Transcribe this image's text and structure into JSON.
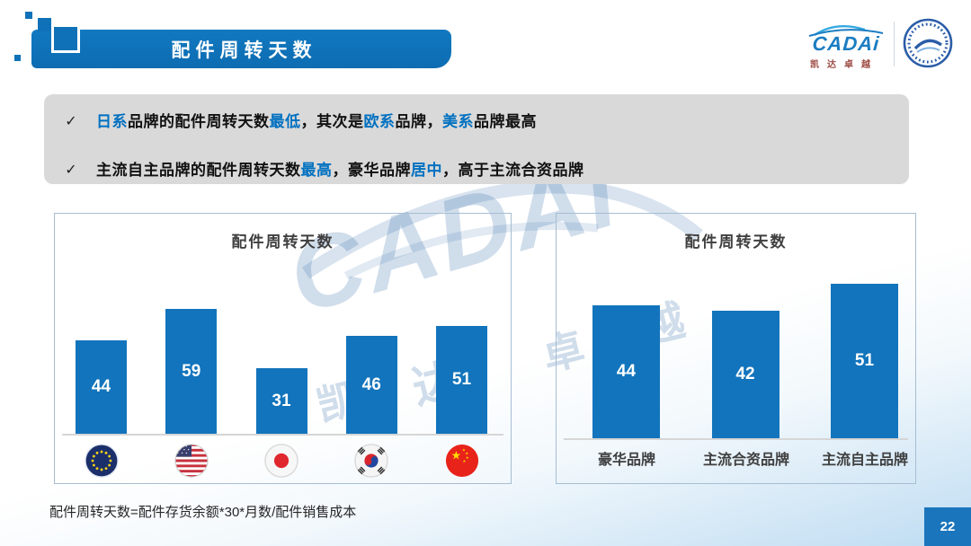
{
  "slide": {
    "banner_title": "配件周转天数",
    "footnote": "配件周转天数=配件存货余额*30*月数/配件销售成本",
    "page_number": "22"
  },
  "logo": {
    "brand": "CADAi",
    "subtitle": "凯达卓越"
  },
  "bullets": [
    {
      "check": "✓",
      "segments": [
        {
          "text": "日系",
          "color": "blue"
        },
        {
          "text": "品牌的配件周转天数",
          "color": "dark"
        },
        {
          "text": "最低",
          "color": "blue"
        },
        {
          "text": "，其次是",
          "color": "dark"
        },
        {
          "text": "欧系",
          "color": "blue"
        },
        {
          "text": "品牌，",
          "color": "dark"
        },
        {
          "text": "美系",
          "color": "blue"
        },
        {
          "text": "品牌最高",
          "color": "dark"
        }
      ]
    },
    {
      "check": "✓",
      "segments": [
        {
          "text": "主流自主品牌的配件周转天数",
          "color": "dark"
        },
        {
          "text": "最高",
          "color": "blue"
        },
        {
          "text": "，豪华品牌",
          "color": "dark"
        },
        {
          "text": "居中",
          "color": "blue"
        },
        {
          "text": "，高于主流合资品牌",
          "color": "dark"
        }
      ]
    }
  ],
  "watermark": {
    "brand": "CADAi",
    "chars": [
      "凯",
      "达",
      "卓",
      "越"
    ]
  },
  "chart_data": [
    {
      "type": "bar",
      "title": "配件周转天数",
      "categories": [
        "EU",
        "US",
        "Japan",
        "Korea",
        "China"
      ],
      "category_icons": [
        "eu-flag-icon",
        "usa-flag-icon",
        "japan-flag-icon",
        "korea-flag-icon",
        "china-flag-icon"
      ],
      "values": [
        44,
        59,
        31,
        46,
        51
      ],
      "bar_color": "#1274bc",
      "value_label_color": "#ffffff",
      "value_labels": "inside-center",
      "grid": false,
      "ylim": [
        0,
        65
      ]
    },
    {
      "type": "bar",
      "title": "配件周转天数",
      "categories": [
        "豪华品牌",
        "主流合资品牌",
        "主流自主品牌"
      ],
      "values": [
        44,
        42,
        51
      ],
      "bar_color": "#1274bc",
      "value_label_color": "#ffffff",
      "value_labels": "inside-center",
      "grid": false,
      "ylim": [
        0,
        60
      ]
    }
  ],
  "colors": {
    "accent_blue": "#1274bc",
    "highlight_text_blue": "#0070c0",
    "bullet_box_bg": "#d9d9d9",
    "panel_border": "#a6bdd2",
    "background_bottom": "#bedcf2"
  }
}
